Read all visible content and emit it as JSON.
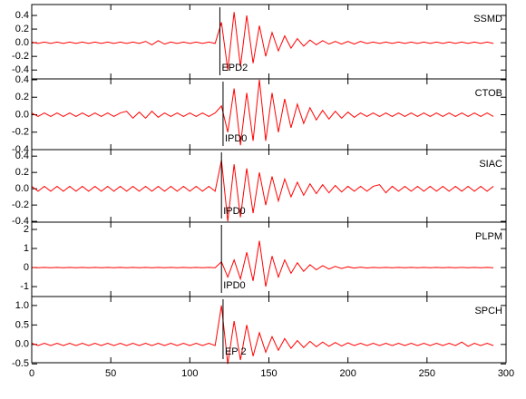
{
  "chart_data": [
    {
      "type": "line",
      "ylim": [
        -0.53,
        0.56
      ],
      "yticks": [
        -0.4,
        -0.2,
        {
          "value": 0,
          "label": "0.0"
        },
        0.2,
        0.4
      ],
      "xlim": [
        0,
        300
      ],
      "pick": {
        "x": 119,
        "label": "EPD2"
      },
      "x": [
        0,
        4,
        8,
        12,
        16,
        20,
        24,
        28,
        32,
        36,
        40,
        44,
        48,
        52,
        56,
        60,
        64,
        68,
        72,
        76,
        80,
        84,
        88,
        92,
        96,
        100,
        104,
        108,
        112,
        116,
        120,
        124,
        128,
        132,
        136,
        140,
        144,
        148,
        152,
        156,
        160,
        164,
        168,
        172,
        176,
        180,
        184,
        188,
        192,
        196,
        200,
        204,
        208,
        212,
        216,
        220,
        224,
        228,
        232,
        236,
        240,
        244,
        248,
        252,
        256,
        260,
        264,
        268,
        272,
        276,
        280,
        284,
        288,
        292
      ],
      "series": [
        {
          "name": "SSMD",
          "color": "#ff0000",
          "values": [
            0.01,
            -0.01,
            0.01,
            -0.01,
            0.01,
            -0.01,
            0.01,
            -0.01,
            0.01,
            -0.01,
            0.01,
            -0.01,
            0.01,
            -0.01,
            0.01,
            -0.01,
            0.01,
            -0.01,
            0.02,
            -0.03,
            0.03,
            -0.02,
            0.01,
            -0.01,
            0.01,
            -0.01,
            0.01,
            -0.01,
            0.01,
            -0.01,
            0.3,
            -0.4,
            0.45,
            -0.35,
            0.4,
            -0.3,
            0.25,
            -0.2,
            0.15,
            -0.12,
            0.1,
            -0.08,
            0.06,
            -0.05,
            0.04,
            -0.03,
            0.03,
            -0.02,
            0.02,
            -0.02,
            0.02,
            -0.02,
            0.02,
            -0.01,
            0.01,
            -0.01,
            0.01,
            -0.01,
            0.01,
            -0.01,
            0.01,
            -0.01,
            0.01,
            -0.01,
            0.01,
            -0.01,
            0.01,
            -0.01,
            0.01,
            -0.01,
            0.01,
            -0.01,
            0.01,
            -0.01
          ]
        }
      ]
    },
    {
      "type": "line",
      "ylim": [
        -0.4,
        0.41
      ],
      "yticks": [
        -0.4,
        -0.2,
        {
          "value": 0,
          "label": "0.0"
        },
        0.2,
        0.4
      ],
      "xlim": [
        0,
        300
      ],
      "pick": {
        "x": 121,
        "label": "IPD0"
      },
      "x": [
        0,
        4,
        8,
        12,
        16,
        20,
        24,
        28,
        32,
        36,
        40,
        44,
        48,
        52,
        56,
        60,
        64,
        68,
        72,
        76,
        80,
        84,
        88,
        92,
        96,
        100,
        104,
        108,
        112,
        116,
        120,
        124,
        128,
        132,
        136,
        140,
        144,
        148,
        152,
        156,
        160,
        164,
        168,
        172,
        176,
        180,
        184,
        188,
        192,
        196,
        200,
        204,
        208,
        212,
        216,
        220,
        224,
        228,
        232,
        236,
        240,
        244,
        248,
        252,
        256,
        260,
        264,
        268,
        272,
        276,
        280,
        284,
        288,
        292
      ],
      "series": [
        {
          "name": "CTOB",
          "color": "#ff0000",
          "values": [
            0.02,
            -0.02,
            0.02,
            -0.02,
            0.02,
            -0.02,
            0.02,
            -0.02,
            0.02,
            -0.02,
            0.02,
            -0.02,
            0.02,
            -0.02,
            0.02,
            0.04,
            -0.04,
            0.03,
            -0.04,
            0.04,
            -0.03,
            0.02,
            -0.02,
            0.02,
            -0.02,
            0.02,
            -0.02,
            0.02,
            -0.02,
            0.02,
            0.1,
            -0.2,
            0.3,
            -0.35,
            0.25,
            -0.3,
            0.4,
            -0.3,
            0.25,
            -0.2,
            0.18,
            -0.15,
            0.12,
            -0.1,
            0.08,
            -0.06,
            0.05,
            -0.05,
            0.04,
            -0.04,
            0.03,
            -0.03,
            0.02,
            -0.02,
            0.02,
            -0.02,
            0.02,
            -0.02,
            0.02,
            -0.02,
            0.02,
            -0.02,
            0.02,
            -0.02,
            0.02,
            -0.02,
            0.02,
            -0.02,
            0.02,
            -0.02,
            0.02,
            -0.02,
            0.02,
            -0.02
          ]
        }
      ]
    },
    {
      "type": "line",
      "ylim": [
        -0.41,
        0.48
      ],
      "yticks": [
        -0.4,
        -0.2,
        {
          "value": 0,
          "label": "0.0"
        },
        0.2,
        0.4
      ],
      "xlim": [
        0,
        300
      ],
      "pick": {
        "x": 120,
        "label": "IPD0"
      },
      "x": [
        0,
        4,
        8,
        12,
        16,
        20,
        24,
        28,
        32,
        36,
        40,
        44,
        48,
        52,
        56,
        60,
        64,
        68,
        72,
        76,
        80,
        84,
        88,
        92,
        96,
        100,
        104,
        108,
        112,
        116,
        120,
        124,
        128,
        132,
        136,
        140,
        144,
        148,
        152,
        156,
        160,
        164,
        168,
        172,
        176,
        180,
        184,
        188,
        192,
        196,
        200,
        204,
        208,
        212,
        216,
        220,
        224,
        228,
        232,
        236,
        240,
        244,
        248,
        252,
        256,
        260,
        264,
        268,
        272,
        276,
        280,
        284,
        288,
        292
      ],
      "series": [
        {
          "name": "SIAC",
          "color": "#ff0000",
          "values": [
            0.03,
            -0.03,
            0.03,
            -0.03,
            0.03,
            -0.03,
            0.03,
            -0.03,
            0.03,
            -0.03,
            0.03,
            -0.03,
            0.03,
            -0.03,
            0.03,
            -0.03,
            0.03,
            -0.03,
            0.03,
            -0.03,
            0.03,
            -0.03,
            0.03,
            -0.03,
            0.03,
            -0.03,
            0.03,
            -0.03,
            0.03,
            -0.03,
            0.35,
            -0.4,
            0.3,
            -0.35,
            0.25,
            -0.3,
            0.2,
            -0.2,
            0.15,
            -0.15,
            0.12,
            -0.1,
            0.08,
            -0.08,
            0.06,
            -0.06,
            0.05,
            -0.05,
            0.04,
            -0.04,
            0.03,
            -0.03,
            0.03,
            -0.03,
            0.03,
            0.05,
            -0.05,
            0.03,
            -0.03,
            0.03,
            -0.03,
            0.03,
            -0.03,
            0.03,
            -0.03,
            0.03,
            -0.03,
            0.03,
            -0.03,
            0.03,
            -0.03,
            0.03,
            -0.03,
            0.03
          ]
        }
      ]
    },
    {
      "type": "line",
      "ylim": [
        -1.52,
        2.38
      ],
      "yticks": [
        -1,
        0,
        1,
        2
      ],
      "xlim": [
        0,
        300
      ],
      "pick": {
        "x": 120,
        "label": "IPD0"
      },
      "x": [
        0,
        4,
        8,
        12,
        16,
        20,
        24,
        28,
        32,
        36,
        40,
        44,
        48,
        52,
        56,
        60,
        64,
        68,
        72,
        76,
        80,
        84,
        88,
        92,
        96,
        100,
        104,
        108,
        112,
        116,
        120,
        124,
        128,
        132,
        136,
        140,
        144,
        148,
        152,
        156,
        160,
        164,
        168,
        172,
        176,
        180,
        184,
        188,
        192,
        196,
        200,
        204,
        208,
        212,
        216,
        220,
        224,
        228,
        232,
        236,
        240,
        244,
        248,
        252,
        256,
        260,
        264,
        268,
        272,
        276,
        280,
        284,
        288,
        292
      ],
      "series": [
        {
          "name": "PLPM",
          "color": "#ff0000",
          "values": [
            0.01,
            -0.01,
            0.01,
            -0.01,
            0.01,
            -0.01,
            0.01,
            -0.01,
            0.01,
            -0.01,
            0.01,
            -0.01,
            0.01,
            -0.01,
            0.01,
            -0.01,
            0.01,
            -0.01,
            0.01,
            -0.01,
            0.01,
            -0.01,
            0.01,
            -0.01,
            0.01,
            -0.01,
            0.01,
            -0.01,
            0.01,
            -0.01,
            0.3,
            -0.5,
            0.4,
            -0.6,
            0.8,
            -0.7,
            1.4,
            -1.0,
            0.6,
            -0.5,
            0.4,
            -0.3,
            0.25,
            -0.2,
            0.15,
            -0.12,
            0.1,
            -0.08,
            0.06,
            -0.05,
            0.04,
            -0.03,
            0.02,
            -0.02,
            0.01,
            -0.01,
            0.01,
            -0.01,
            0.01,
            -0.01,
            0.01,
            -0.01,
            0.01,
            -0.01,
            0.01,
            -0.01,
            0.01,
            -0.01,
            0.01,
            -0.01,
            0.01,
            -0.01,
            0.01,
            -0.01
          ]
        }
      ]
    },
    {
      "type": "line",
      "ylim": [
        -0.47,
        1.23
      ],
      "yticks": [
        -0.5,
        {
          "value": 0,
          "label": "0.0"
        },
        0.5,
        {
          "value": 1,
          "label": "1.0"
        }
      ],
      "xlim": [
        0,
        300
      ],
      "xticks": [
        0,
        50,
        100,
        150,
        200,
        250,
        300
      ],
      "pick": {
        "x": 121,
        "label": "EP 2"
      },
      "x": [
        0,
        4,
        8,
        12,
        16,
        20,
        24,
        28,
        32,
        36,
        40,
        44,
        48,
        52,
        56,
        60,
        64,
        68,
        72,
        76,
        80,
        84,
        88,
        92,
        96,
        100,
        104,
        108,
        112,
        116,
        120,
        124,
        128,
        132,
        136,
        140,
        144,
        148,
        152,
        156,
        160,
        164,
        168,
        172,
        176,
        180,
        184,
        188,
        192,
        196,
        200,
        204,
        208,
        212,
        216,
        220,
        224,
        228,
        232,
        236,
        240,
        244,
        248,
        252,
        256,
        260,
        264,
        268,
        272,
        276,
        280,
        284,
        288,
        292
      ],
      "series": [
        {
          "name": "SPCH",
          "color": "#ff0000",
          "values": [
            0.03,
            -0.03,
            0.03,
            -0.03,
            0.03,
            -0.03,
            0.03,
            -0.03,
            0.03,
            -0.03,
            0.03,
            -0.03,
            0.03,
            -0.03,
            0.03,
            -0.03,
            0.03,
            -0.03,
            0.03,
            -0.03,
            0.03,
            -0.03,
            0.03,
            -0.03,
            0.03,
            -0.03,
            0.03,
            -0.03,
            0.03,
            -0.03,
            1.0,
            -0.5,
            0.6,
            -0.4,
            0.5,
            -0.3,
            0.3,
            -0.2,
            0.2,
            -0.15,
            0.15,
            -0.1,
            0.1,
            -0.08,
            0.08,
            -0.06,
            0.06,
            -0.05,
            0.05,
            -0.04,
            0.04,
            -0.03,
            0.03,
            -0.03,
            0.03,
            -0.03,
            0.03,
            -0.03,
            0.03,
            -0.03,
            0.03,
            -0.03,
            0.03,
            -0.03,
            0.03,
            -0.03,
            0.03,
            -0.03,
            0.06,
            -0.05,
            0.03,
            -0.03,
            0.03,
            -0.03
          ]
        }
      ]
    }
  ]
}
